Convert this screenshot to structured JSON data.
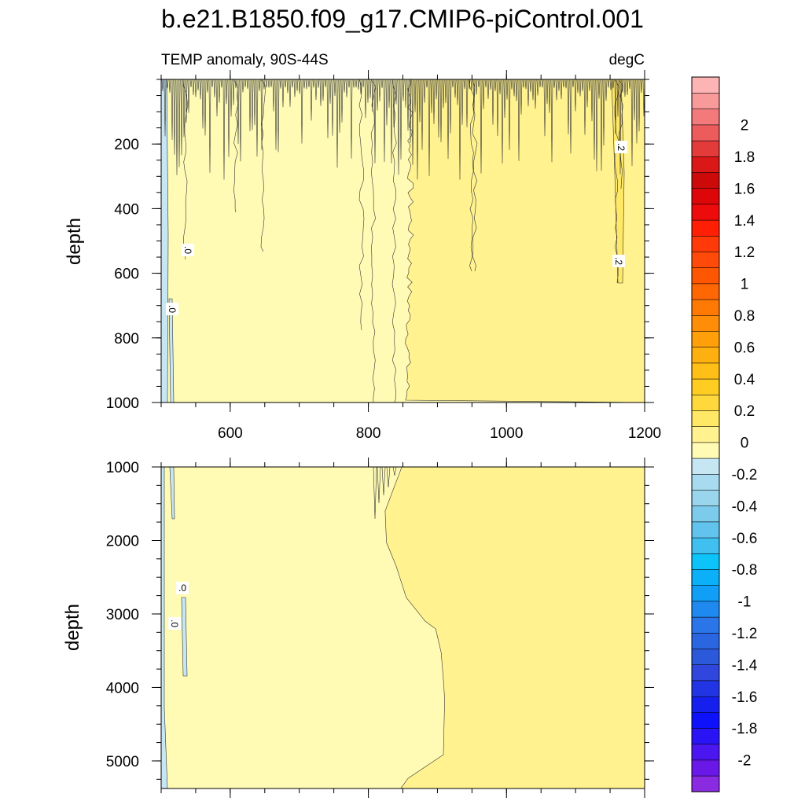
{
  "chart_data": {
    "type": "contour",
    "title": "b.e21.B1850.f09_g17.CMIP6-piControl.001",
    "subtitle_left": "TEMP anomaly, 90S-44S",
    "subtitle_right": "degC",
    "colorbar": {
      "units": "degC",
      "levels": [
        -2.1,
        -2.0,
        -1.9,
        -1.8,
        -1.7,
        -1.6,
        -1.5,
        -1.4,
        -1.3,
        -1.2,
        -1.1,
        -1.0,
        -0.9,
        -0.8,
        -0.7,
        -0.6,
        -0.5,
        -0.4,
        -0.3,
        -0.2,
        -0.1,
        0.0,
        0.1,
        0.2,
        0.3,
        0.4,
        0.5,
        0.6,
        0.7,
        0.8,
        0.9,
        1.0,
        1.1,
        1.2,
        1.3,
        1.4,
        1.5,
        1.6,
        1.7,
        1.8,
        1.9,
        2.0,
        2.1
      ],
      "colors": [
        "#8a2be2",
        "#6a18e8",
        "#4b16f0",
        "#2a14f5",
        "#0d12fa",
        "#1620ee",
        "#2235e4",
        "#3046dc",
        "#2c58da",
        "#2a66e0",
        "#2a76e8",
        "#1e8af0",
        "#109ef6",
        "#0bb0f8",
        "#0cc4fa",
        "#3fc0f0",
        "#62c4ee",
        "#7ccbec",
        "#9ad5ee",
        "#a9dbf0",
        "#c6e6f4",
        "#fffbb5",
        "#fff28f",
        "#ffe866",
        "#ffd93b",
        "#ffcc22",
        "#ffbf17",
        "#ffb011",
        "#ffa00b",
        "#ff8d07",
        "#ff7a05",
        "#ff6703",
        "#ff5602",
        "#ff4a0a",
        "#ff3a08",
        "#ff1f05",
        "#ee0b0b",
        "#dd0608",
        "#cc0a0a",
        "#da1818",
        "#e33a3a",
        "#ec5c5c",
        "#f27a7a",
        "#f99a9a",
        "#fcb4b4"
      ],
      "tick_labels": [
        "2",
        "1.8",
        "1.6",
        "1.4",
        "1.2",
        "1",
        "0.8",
        "0.6",
        "0.4",
        "0.2",
        "0",
        "-0.2",
        "-0.4",
        "-0.6",
        "-0.8",
        "-1",
        "-1.2",
        "-1.4",
        "-1.6",
        "-1.8",
        "-2"
      ]
    },
    "panels": [
      {
        "x_range": [
          500,
          1200
        ],
        "y_range": [
          0,
          1000
        ],
        "y_reversed": true,
        "ylabel": "depth",
        "x_tick_labels": [
          "600",
          "800",
          "1000",
          "1200"
        ],
        "y_tick_labels": [
          "200",
          "400",
          "600",
          "800",
          "1000"
        ],
        "contour_labels": [
          ".0",
          ".0",
          ".2",
          ".2"
        ]
      },
      {
        "x_range": [
          500,
          1200
        ],
        "y_range": [
          1000,
          5375
        ],
        "y_reversed": true,
        "ylabel": "depth",
        "x_tick_labels": [],
        "y_tick_labels": [
          "1000",
          "2000",
          "3000",
          "4000",
          "5000"
        ],
        "contour_labels": [
          ".0",
          ".0"
        ]
      }
    ],
    "regions": {
      "negative_color": "#c6e6f4",
      "zero_to_0p1_color": "#fffbb5",
      "0p1_to_0p2_color": "#fff28f",
      "0p2_to_0p3_color": "#ffe866"
    }
  }
}
